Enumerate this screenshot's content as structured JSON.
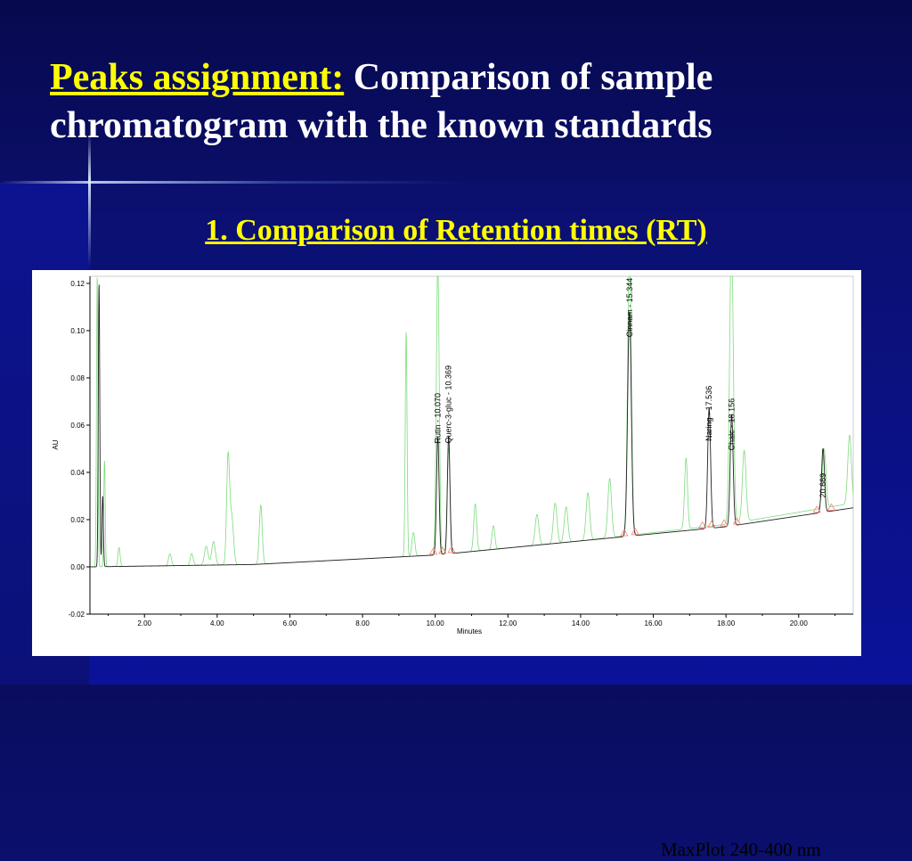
{
  "slide": {
    "title_highlight": "Peaks assignment:",
    "title_line1_rest": " Comparison of sample",
    "title_line2": "chromatogram with the known standards",
    "subtitle": "1. Comparison of Retention times (RT)",
    "annotation": "MaxPlot 240-400 nm"
  },
  "colors": {
    "background": "#0a0f7a",
    "title_text": "#ffffff",
    "highlight_text": "#ffff00",
    "sample_trace": "#222222",
    "standards_trace": "#7ddc7d",
    "integration_marks": "#ff8080"
  },
  "chart_data": {
    "type": "line",
    "xlabel": "Minutes",
    "ylabel": "AU",
    "xlim": [
      0.5,
      21.5
    ],
    "ylim": [
      -0.02,
      0.123
    ],
    "x_ticks": [
      "2.00",
      "4.00",
      "6.00",
      "8.00",
      "10.00",
      "12.00",
      "14.00",
      "16.00",
      "18.00",
      "20.00"
    ],
    "x_tick_values": [
      2,
      4,
      6,
      8,
      10,
      12,
      14,
      16,
      18,
      20
    ],
    "y_ticks": [
      "-0.02",
      "0.00",
      "0.02",
      "0.04",
      "0.06",
      "0.08",
      "0.10",
      "0.12"
    ],
    "y_tick_values": [
      -0.02,
      0.0,
      0.02,
      0.04,
      0.06,
      0.08,
      0.1,
      0.12
    ],
    "grid": false,
    "labeled_peaks": [
      {
        "label": "Rutin - 10.070",
        "rt": 10.07,
        "height": 0.05
      },
      {
        "label": "Querc-3-gluc - 10.369",
        "rt": 10.369,
        "height": 0.05
      },
      {
        "label": "Cinnam - 15.344",
        "rt": 15.344,
        "height": 0.095
      },
      {
        "label": "Naring - 17.536",
        "rt": 17.536,
        "height": 0.051
      },
      {
        "label": "Chalc - 18.156",
        "rt": 18.156,
        "height": 0.047
      },
      {
        "label": "20.669",
        "rt": 20.669,
        "height": 0.027
      }
    ],
    "series": [
      {
        "role": "sample",
        "baseline": [
          [
            0.5,
            0.0
          ],
          [
            5.0,
            0.001
          ],
          [
            10.0,
            0.005
          ],
          [
            14.0,
            0.011
          ],
          [
            18.0,
            0.017
          ],
          [
            21.5,
            0.025
          ]
        ],
        "peaks": [
          [
            0.75,
            0.12,
            0.02
          ],
          [
            0.85,
            0.03,
            0.02
          ],
          [
            10.07,
            0.05,
            0.035
          ],
          [
            10.369,
            0.05,
            0.035
          ],
          [
            15.344,
            0.095,
            0.05
          ],
          [
            17.536,
            0.051,
            0.04
          ],
          [
            18.156,
            0.047,
            0.04
          ],
          [
            20.669,
            0.027,
            0.04
          ]
        ]
      },
      {
        "role": "standards",
        "baseline": [
          [
            0.5,
            0.0
          ],
          [
            5.0,
            0.001
          ],
          [
            10.0,
            0.005
          ],
          [
            14.0,
            0.011
          ],
          [
            18.0,
            0.018
          ],
          [
            21.5,
            0.027
          ]
        ],
        "peaks": [
          [
            0.7,
            0.123,
            0.02
          ],
          [
            0.9,
            0.045,
            0.02
          ],
          [
            1.3,
            0.008,
            0.03
          ],
          [
            2.7,
            0.005,
            0.04
          ],
          [
            3.3,
            0.005,
            0.04
          ],
          [
            3.7,
            0.008,
            0.05
          ],
          [
            3.9,
            0.01,
            0.05
          ],
          [
            4.3,
            0.045,
            0.04
          ],
          [
            4.4,
            0.02,
            0.05
          ],
          [
            5.2,
            0.025,
            0.04
          ],
          [
            9.2,
            0.095,
            0.025
          ],
          [
            9.4,
            0.01,
            0.04
          ],
          [
            10.07,
            0.123,
            0.04
          ],
          [
            10.369,
            0.045,
            0.04
          ],
          [
            11.1,
            0.02,
            0.04
          ],
          [
            11.6,
            0.01,
            0.04
          ],
          [
            12.8,
            0.013,
            0.05
          ],
          [
            13.3,
            0.017,
            0.05
          ],
          [
            13.6,
            0.015,
            0.05
          ],
          [
            14.2,
            0.02,
            0.05
          ],
          [
            14.8,
            0.025,
            0.05
          ],
          [
            15.344,
            0.123,
            0.05
          ],
          [
            16.9,
            0.03,
            0.04
          ],
          [
            18.15,
            0.123,
            0.05
          ],
          [
            18.5,
            0.03,
            0.05
          ],
          [
            20.7,
            0.025,
            0.05
          ],
          [
            21.4,
            0.029,
            0.05
          ]
        ]
      }
    ],
    "integration_marks": [
      9.95,
      10.2,
      10.45,
      15.2,
      15.5,
      17.35,
      17.6,
      17.95,
      18.3,
      20.5,
      20.9
    ]
  }
}
